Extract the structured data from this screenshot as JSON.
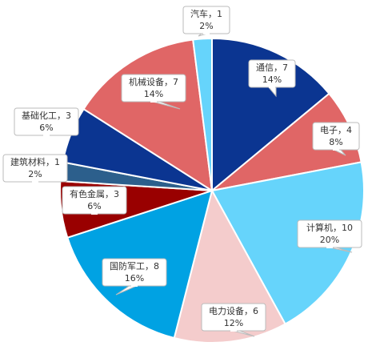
{
  "chart_data": {
    "type": "pie",
    "labels": [
      "通信，7",
      "电子，4",
      "计算机，10",
      "电力设备，6",
      "国防军工，8",
      "有色金属，3",
      "建筑材料，1",
      "基础化工，3",
      "机械设备，7",
      "汽车，1"
    ],
    "values": [
      7,
      4,
      10,
      6,
      8,
      3,
      1,
      3,
      7,
      1
    ],
    "percent_labels": [
      "14%",
      "8%",
      "20%",
      "12%",
      "16%",
      "6%",
      "2%",
      "6%",
      "14%",
      "2%"
    ],
    "colors": [
      "#0b3591",
      "#e06666",
      "#66d4fb",
      "#f4cccc",
      "#00a2e3",
      "#990000",
      "#2c5f8c",
      "#0b3591",
      "#e06666",
      "#66d4fb"
    ]
  }
}
